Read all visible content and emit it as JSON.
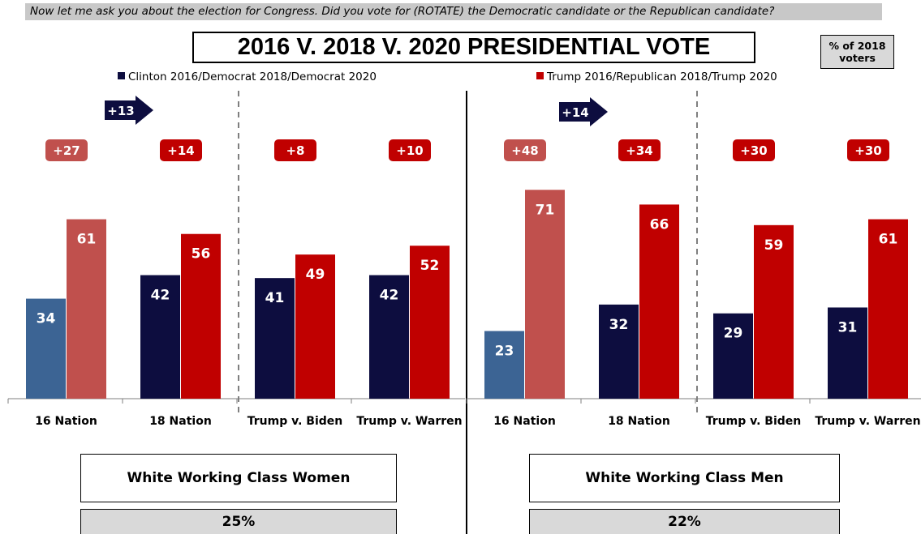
{
  "question": "Now let me ask you about the election for Congress. Did you vote for (ROTATE) the Democratic candidate or the Republican candidate?",
  "share_label": [
    "% of 2018",
    "voters"
  ],
  "colors": {
    "dem_light": "#3c6494",
    "dem_dark": "#0d0d3f",
    "rep_light": "#c0504d",
    "rep_dark": "#c00000"
  },
  "chart_data": {
    "type": "bar",
    "title": "2016 V. 2018 V. 2020 PRESIDENTIAL VOTE",
    "legend": [
      {
        "name": "Clinton 2016/Democrat 2018/Democrat 2020",
        "color": "#0d0d3f"
      },
      {
        "name": "Trump 2016/Republican 2018/Trump 2020",
        "color": "#c00000"
      }
    ],
    "groups": [
      {
        "label": "White Working Class Women",
        "share": "25%",
        "categories": [
          "16 Nation",
          "18 Nation",
          "Trump v. Biden",
          "Trump v. Warren"
        ],
        "series": [
          {
            "name": "Clinton 2016/Democrat 2018/Democrat 2020",
            "values": [
              34,
              42,
              41,
              42
            ]
          },
          {
            "name": "Trump 2016/Republican 2018/Trump 2020",
            "values": [
              61,
              56,
              49,
              52
            ]
          }
        ],
        "margins": [
          "+27",
          "+14",
          "+8",
          "+10"
        ],
        "shift": "+13"
      },
      {
        "label": "White Working Class Men",
        "share": "22%",
        "categories": [
          "16 Nation",
          "18 Nation",
          "Trump v. Biden",
          "Trump v. Warren"
        ],
        "series": [
          {
            "name": "Clinton 2016/Democrat 2018/Democrat 2020",
            "values": [
              23,
              32,
              29,
              31
            ]
          },
          {
            "name": "Trump 2016/Republican 2018/Trump 2020",
            "values": [
              71,
              66,
              59,
              61
            ]
          }
        ],
        "margins": [
          "+48",
          "+34",
          "+30",
          "+30"
        ],
        "shift": "+14"
      }
    ],
    "ylim": [
      0,
      80
    ]
  }
}
